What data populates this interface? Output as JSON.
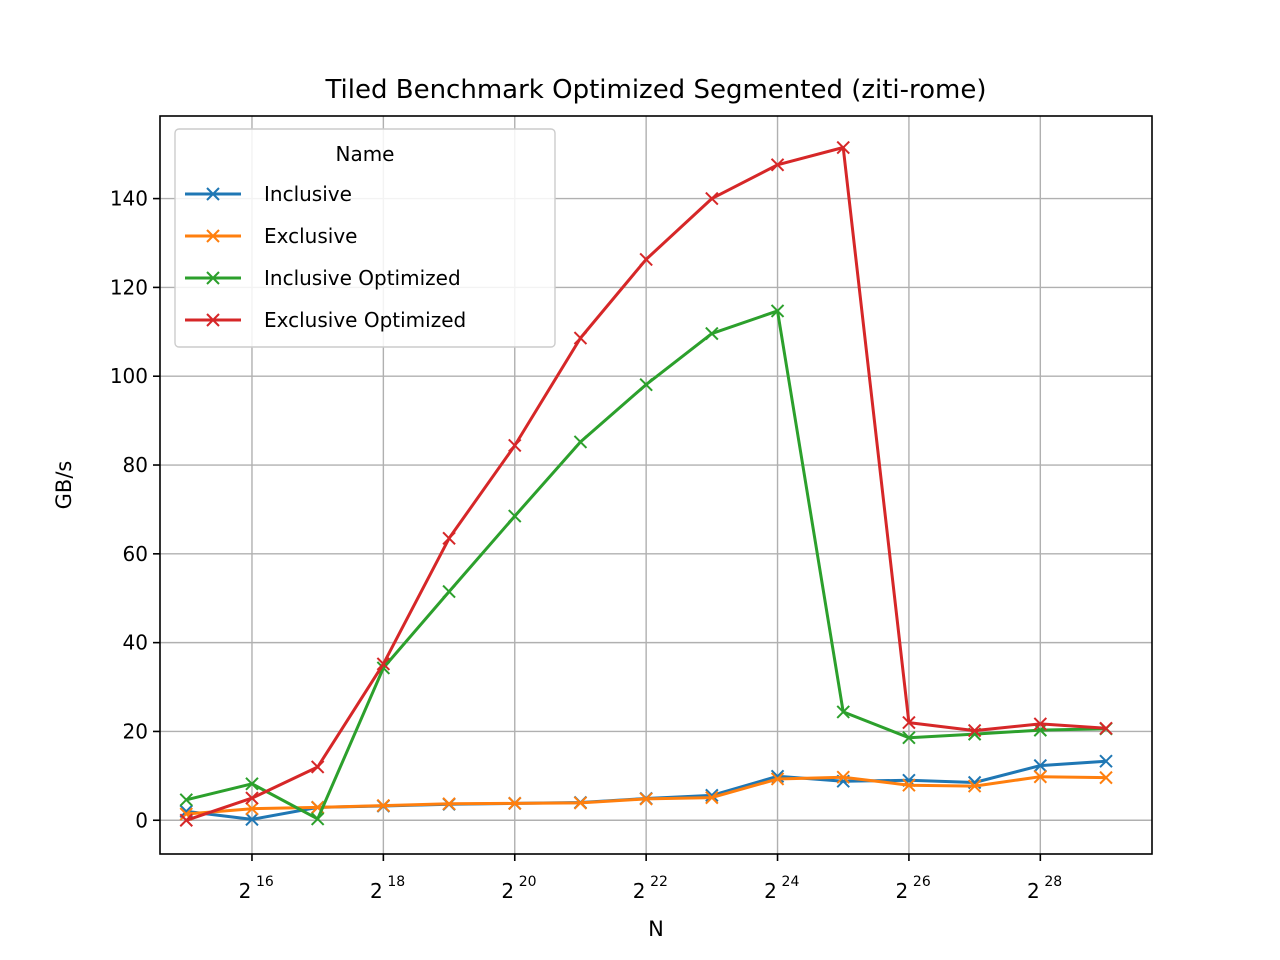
{
  "chart_data": {
    "type": "line",
    "title": "Tiled Benchmark Optimized Segmented (ziti-rome)",
    "xlabel": "N",
    "ylabel": "GB/s",
    "x_scale": "log2",
    "x": [
      32768,
      65536,
      131072,
      262144,
      524288,
      1048576,
      2097152,
      4194304,
      8388608,
      16777216,
      33554432,
      67108864,
      134217728,
      268435456,
      536870912
    ],
    "x_ticks": [
      {
        "base": "2",
        "exp": "16",
        "value": 65536
      },
      {
        "base": "2",
        "exp": "18",
        "value": 262144
      },
      {
        "base": "2",
        "exp": "20",
        "value": 1048576
      },
      {
        "base": "2",
        "exp": "22",
        "value": 4194304
      },
      {
        "base": "2",
        "exp": "24",
        "value": 16777216
      },
      {
        "base": "2",
        "exp": "26",
        "value": 67108864
      },
      {
        "base": "2",
        "exp": "28",
        "value": 268435456
      }
    ],
    "xlim_exp": [
      14.6,
      29.7
    ],
    "ylim": [
      -7.6,
      158.6
    ],
    "y_ticks": [
      0,
      20,
      40,
      60,
      80,
      100,
      120,
      140
    ],
    "grid": true,
    "legend": {
      "title": "Name",
      "placement": "upper-left"
    },
    "marker": "x",
    "series": [
      {
        "name": "Inclusive",
        "color": "#1f77b4",
        "values": [
          2.0,
          0.2,
          2.9,
          3.2,
          3.6,
          3.8,
          4.0,
          4.9,
          5.6,
          9.9,
          8.8,
          9.0,
          8.5,
          12.3,
          13.3
        ]
      },
      {
        "name": "Exclusive",
        "color": "#ff7f0e",
        "values": [
          1.4,
          2.6,
          2.9,
          3.3,
          3.7,
          3.8,
          3.9,
          4.8,
          5.1,
          9.3,
          9.7,
          7.9,
          7.7,
          9.8,
          9.6
        ]
      },
      {
        "name": "Inclusive Optimized",
        "color": "#2ca02c",
        "values": [
          4.6,
          8.2,
          0.3,
          34.3,
          51.5,
          68.5,
          85.2,
          98.1,
          109.6,
          114.7,
          24.4,
          18.6,
          19.4,
          20.3,
          20.6
        ]
      },
      {
        "name": "Exclusive Optimized",
        "color": "#d62728",
        "values": [
          0.0,
          5.0,
          12.0,
          35.2,
          63.5,
          84.4,
          108.6,
          126.3,
          140.0,
          147.6,
          151.5,
          22.0,
          20.2,
          21.7,
          20.7
        ]
      }
    ]
  }
}
